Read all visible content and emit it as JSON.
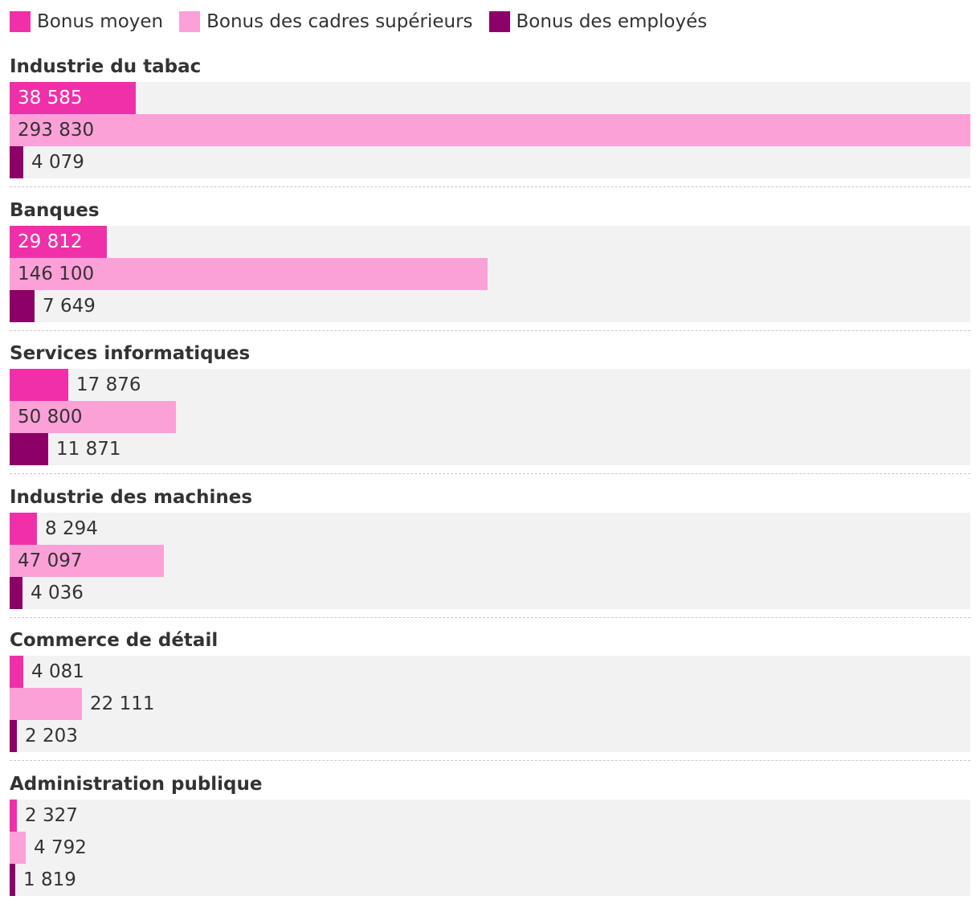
{
  "legend": [
    {
      "label": "Bonus moyen",
      "color": "#f030a8"
    },
    {
      "label": "Bonus des cadres supérieurs",
      "color": "#fca0d8"
    },
    {
      "label": "Bonus des employés",
      "color": "#8c0068"
    }
  ],
  "chart_data": {
    "type": "bar",
    "orientation": "horizontal",
    "title": "",
    "xlabel": "",
    "ylabel": "",
    "xlim": [
      0,
      293830
    ],
    "legend_position": "top-left",
    "categories": [
      "Industrie du tabac",
      "Banques",
      "Services informatiques",
      "Industrie des machines",
      "Commerce de détail",
      "Administration publique"
    ],
    "series": [
      {
        "name": "Bonus moyen",
        "color": "#f030a8",
        "values": [
          38585,
          29812,
          17876,
          8294,
          4081,
          2327
        ],
        "labels": [
          "38 585",
          "29 812",
          "17 876",
          "8 294",
          "4 081",
          "2 327"
        ]
      },
      {
        "name": "Bonus des cadres supérieurs",
        "color": "#fca0d8",
        "values": [
          293830,
          146100,
          50800,
          47097,
          22111,
          4792
        ],
        "labels": [
          "293 830",
          "146 100",
          "50 800",
          "47 097",
          "22 111",
          "4 792"
        ]
      },
      {
        "name": "Bonus des employés",
        "color": "#8c0068",
        "values": [
          4079,
          7649,
          11871,
          4036,
          2203,
          1819
        ],
        "labels": [
          "4 079",
          "7 649",
          "11 871",
          "4 036",
          "2 203",
          "1 819"
        ]
      }
    ]
  }
}
